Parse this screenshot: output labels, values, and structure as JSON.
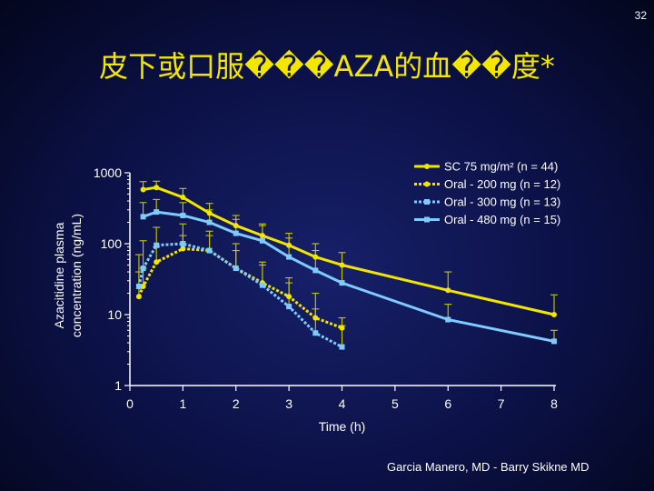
{
  "page_number": "32",
  "title": "皮下或口服���AZA的血��度*",
  "credit": "Garcia Manero, MD - Barry Skikne MD",
  "colors": {
    "sc": "#f2e600",
    "oral200": "#f2e600",
    "oral300": "#7ecbff",
    "oral480": "#7ecbff",
    "axis": "#ffffff",
    "error_bar": "#c8c800"
  },
  "chart_data": {
    "type": "line",
    "title": "",
    "xlabel": "Time (h)",
    "ylabel_lines": [
      "Azacitidine plasma",
      "concentration (ng/mL)"
    ],
    "y_scale": "log",
    "xlim": [
      0,
      8
    ],
    "ylim": [
      1,
      1000
    ],
    "x_ticks": [
      0,
      1,
      2,
      3,
      4,
      5,
      6,
      7,
      8
    ],
    "y_ticks": [
      1,
      10,
      100,
      1000
    ],
    "y_tick_labels": [
      "1",
      "10",
      "100",
      "1000"
    ],
    "legend_position": "top-right",
    "series": [
      {
        "key": "sc",
        "name": "SC 75 mg/m² (n = 44)",
        "color": "#f2e600",
        "dash": "solid",
        "marker": "circle",
        "x": [
          0.25,
          0.5,
          1,
          1.5,
          2,
          2.5,
          3,
          3.5,
          4,
          6,
          8
        ],
        "y": [
          580,
          620,
          450,
          270,
          180,
          130,
          95,
          65,
          50,
          22,
          10
        ],
        "err_up": [
          750,
          760,
          600,
          370,
          250,
          180,
          140,
          100,
          75,
          40,
          19
        ]
      },
      {
        "key": "oral200",
        "name": "Oral - 200 mg (n = 12)",
        "color": "#f2e600",
        "dash": "dotted",
        "marker": "circle",
        "x": [
          0.17,
          0.25,
          0.5,
          1,
          1.5,
          2,
          2.5,
          3,
          3.5,
          4
        ],
        "y": [
          18,
          25,
          55,
          85,
          80,
          45,
          28,
          18,
          9,
          6.5
        ],
        "err_up": [
          40,
          45,
          90,
          130,
          130,
          80,
          50,
          33,
          20,
          9
        ]
      },
      {
        "key": "oral300",
        "name": "Oral - 300 mg (n = 13)",
        "color": "#7ecbff",
        "dash": "dotted",
        "marker": "square",
        "x": [
          0.17,
          0.25,
          0.5,
          1,
          1.5,
          2,
          2.5,
          3,
          3.5,
          4
        ],
        "y": [
          25,
          45,
          95,
          100,
          80,
          45,
          26,
          13,
          5.5,
          3.5
        ],
        "err_up": [
          70,
          110,
          170,
          190,
          150,
          100,
          55,
          28,
          12,
          7
        ]
      },
      {
        "key": "oral480",
        "name": "Oral - 480 mg (n = 15)",
        "color": "#7ecbff",
        "dash": "solid",
        "marker": "square",
        "x": [
          0.25,
          0.5,
          1,
          1.5,
          2,
          2.5,
          3,
          3.5,
          4,
          6,
          8
        ],
        "y": [
          240,
          280,
          250,
          200,
          140,
          110,
          65,
          42,
          28,
          8.5,
          4.2
        ],
        "err_up": [
          380,
          420,
          380,
          300,
          220,
          190,
          120,
          80,
          50,
          14,
          6
        ]
      }
    ]
  }
}
